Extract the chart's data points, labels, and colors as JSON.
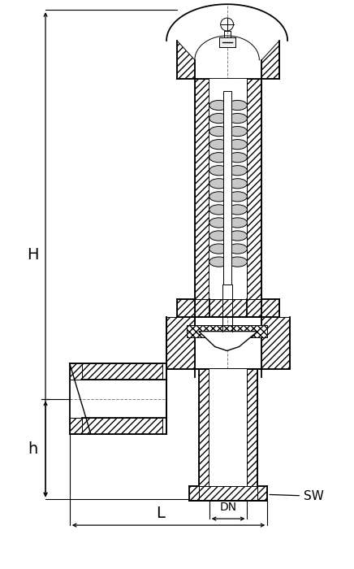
{
  "bg_color": "#ffffff",
  "colors": {
    "outline": "#000000",
    "dim_line": "#000000",
    "background": "#ffffff"
  },
  "fig_width": 4.36,
  "fig_height": 7.0,
  "dpi": 100,
  "labels": {
    "H": "H",
    "h": "h",
    "L": "L",
    "DN": "DN",
    "SW": "SW"
  }
}
